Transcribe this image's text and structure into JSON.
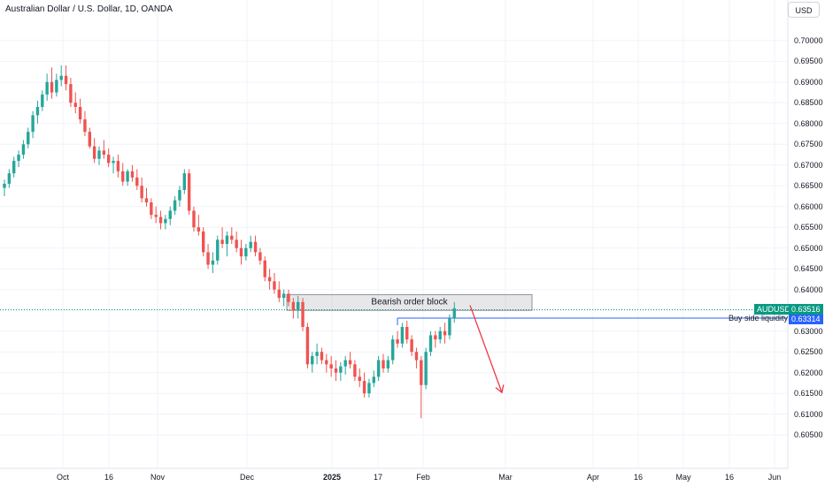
{
  "header": {
    "title": "Australian Dollar / U.S. Dollar, 1D, OANDA",
    "currency": "USD"
  },
  "colors": {
    "up": "#26a69a",
    "down": "#ef5350",
    "grid": "#f0f3fa",
    "axis": "#e0e3eb",
    "symbol_tag": "#089981",
    "liquidity": "#2962ff",
    "arrow": "#f23645"
  },
  "chart_data": {
    "type": "candlestick",
    "title": "Australian Dollar / U.S. Dollar, 1D, OANDA",
    "ylabel": "USD",
    "ylim": [
      0.6012,
      0.7055
    ],
    "y_ticks": [
      "0.70000",
      "0.69500",
      "0.69000",
      "0.68500",
      "0.68000",
      "0.67500",
      "0.67000",
      "0.66500",
      "0.66000",
      "0.65500",
      "0.65000",
      "0.64500",
      "0.64000",
      "0.63500",
      "0.63000",
      "0.62500",
      "0.62000",
      "0.61500",
      "0.61000",
      "0.60500"
    ],
    "x_ticks": [
      {
        "label": "Oct",
        "bold": false
      },
      {
        "label": "16",
        "bold": false
      },
      {
        "label": "Nov",
        "bold": false
      },
      {
        "label": "Dec",
        "bold": false
      },
      {
        "label": "2025",
        "bold": true
      },
      {
        "label": "17",
        "bold": false
      },
      {
        "label": "Feb",
        "bold": false
      },
      {
        "label": "Mar",
        "bold": false
      },
      {
        "label": "Apr",
        "bold": false
      },
      {
        "label": "16",
        "bold": false
      },
      {
        "label": "May",
        "bold": false
      },
      {
        "label": "16",
        "bold": false
      },
      {
        "label": "Jun",
        "bold": false
      }
    ],
    "grid": true,
    "candles_ohlc": [
      [
        0.6645,
        0.6665,
        0.6625,
        0.6655
      ],
      [
        0.6655,
        0.669,
        0.6645,
        0.668
      ],
      [
        0.668,
        0.672,
        0.667,
        0.671
      ],
      [
        0.671,
        0.6735,
        0.6695,
        0.6725
      ],
      [
        0.6725,
        0.676,
        0.6715,
        0.675
      ],
      [
        0.675,
        0.679,
        0.674,
        0.678
      ],
      [
        0.678,
        0.683,
        0.6765,
        0.682
      ],
      [
        0.682,
        0.6855,
        0.68,
        0.684
      ],
      [
        0.684,
        0.688,
        0.683,
        0.687
      ],
      [
        0.687,
        0.692,
        0.6855,
        0.69
      ],
      [
        0.69,
        0.6935,
        0.686,
        0.6875
      ],
      [
        0.6875,
        0.692,
        0.6865,
        0.6905
      ],
      [
        0.6905,
        0.694,
        0.689,
        0.6915
      ],
      [
        0.6915,
        0.694,
        0.688,
        0.6895
      ],
      [
        0.6895,
        0.691,
        0.684,
        0.685
      ],
      [
        0.685,
        0.6875,
        0.6825,
        0.684
      ],
      [
        0.684,
        0.686,
        0.68,
        0.681
      ],
      [
        0.681,
        0.683,
        0.677,
        0.678
      ],
      [
        0.678,
        0.679,
        0.674,
        0.6745
      ],
      [
        0.6745,
        0.6765,
        0.6705,
        0.6715
      ],
      [
        0.6715,
        0.6745,
        0.67,
        0.6735
      ],
      [
        0.6735,
        0.676,
        0.6715,
        0.6725
      ],
      [
        0.6725,
        0.674,
        0.6695,
        0.6705
      ],
      [
        0.6705,
        0.672,
        0.668,
        0.671
      ],
      [
        0.671,
        0.6725,
        0.667,
        0.6685
      ],
      [
        0.6685,
        0.6705,
        0.665,
        0.666
      ],
      [
        0.666,
        0.669,
        0.665,
        0.6685
      ],
      [
        0.6685,
        0.67,
        0.666,
        0.667
      ],
      [
        0.667,
        0.669,
        0.664,
        0.665
      ],
      [
        0.665,
        0.667,
        0.661,
        0.662
      ],
      [
        0.662,
        0.6645,
        0.66,
        0.661
      ],
      [
        0.661,
        0.662,
        0.657,
        0.658
      ],
      [
        0.658,
        0.66,
        0.656,
        0.6575
      ],
      [
        0.6575,
        0.659,
        0.6545,
        0.656
      ],
      [
        0.656,
        0.658,
        0.6545,
        0.657
      ],
      [
        0.657,
        0.66,
        0.6555,
        0.659
      ],
      [
        0.659,
        0.6625,
        0.658,
        0.6615
      ],
      [
        0.6615,
        0.665,
        0.66,
        0.664
      ],
      [
        0.664,
        0.669,
        0.663,
        0.668
      ],
      [
        0.668,
        0.669,
        0.658,
        0.659
      ],
      [
        0.659,
        0.66,
        0.654,
        0.655
      ],
      [
        0.655,
        0.658,
        0.653,
        0.654
      ],
      [
        0.654,
        0.655,
        0.648,
        0.649
      ],
      [
        0.649,
        0.651,
        0.645,
        0.646
      ],
      [
        0.646,
        0.649,
        0.644,
        0.647
      ],
      [
        0.647,
        0.653,
        0.646,
        0.652
      ],
      [
        0.652,
        0.655,
        0.65,
        0.651
      ],
      [
        0.651,
        0.654,
        0.648,
        0.653
      ],
      [
        0.653,
        0.655,
        0.651,
        0.652
      ],
      [
        0.652,
        0.654,
        0.649,
        0.65
      ],
      [
        0.65,
        0.652,
        0.646,
        0.648
      ],
      [
        0.648,
        0.651,
        0.647,
        0.65
      ],
      [
        0.65,
        0.653,
        0.649,
        0.6515
      ],
      [
        0.6515,
        0.653,
        0.648,
        0.649
      ],
      [
        0.649,
        0.65,
        0.646,
        0.647
      ],
      [
        0.647,
        0.648,
        0.642,
        0.643
      ],
      [
        0.643,
        0.645,
        0.64,
        0.642
      ],
      [
        0.642,
        0.644,
        0.639,
        0.64
      ],
      [
        0.64,
        0.642,
        0.637,
        0.638
      ],
      [
        0.638,
        0.64,
        0.636,
        0.639
      ],
      [
        0.639,
        0.64,
        0.636,
        0.637
      ],
      [
        0.637,
        0.638,
        0.633,
        0.635
      ],
      [
        0.635,
        0.6385,
        0.633,
        0.637
      ],
      [
        0.637,
        0.638,
        0.63,
        0.631
      ],
      [
        0.631,
        0.632,
        0.621,
        0.622
      ],
      [
        0.622,
        0.625,
        0.62,
        0.624
      ],
      [
        0.624,
        0.627,
        0.622,
        0.625
      ],
      [
        0.625,
        0.626,
        0.622,
        0.623
      ],
      [
        0.623,
        0.6245,
        0.62,
        0.622
      ],
      [
        0.622,
        0.624,
        0.619,
        0.621
      ],
      [
        0.621,
        0.623,
        0.618,
        0.62
      ],
      [
        0.62,
        0.6225,
        0.618,
        0.6215
      ],
      [
        0.6215,
        0.624,
        0.6195,
        0.623
      ],
      [
        0.623,
        0.625,
        0.621,
        0.622
      ],
      [
        0.622,
        0.623,
        0.618,
        0.619
      ],
      [
        0.619,
        0.621,
        0.6165,
        0.618
      ],
      [
        0.618,
        0.62,
        0.614,
        0.615
      ],
      [
        0.615,
        0.6185,
        0.614,
        0.6175
      ],
      [
        0.6175,
        0.6205,
        0.6165,
        0.619
      ],
      [
        0.619,
        0.624,
        0.618,
        0.623
      ],
      [
        0.623,
        0.6245,
        0.62,
        0.621
      ],
      [
        0.621,
        0.624,
        0.62,
        0.623
      ],
      [
        0.623,
        0.629,
        0.622,
        0.628
      ],
      [
        0.628,
        0.63,
        0.626,
        0.627
      ],
      [
        0.627,
        0.632,
        0.626,
        0.631
      ],
      [
        0.631,
        0.6325,
        0.627,
        0.628
      ],
      [
        0.628,
        0.629,
        0.624,
        0.625
      ],
      [
        0.625,
        0.626,
        0.621,
        0.623
      ],
      [
        0.623,
        0.624,
        0.609,
        0.617
      ],
      [
        0.617,
        0.626,
        0.616,
        0.625
      ],
      [
        0.625,
        0.63,
        0.624,
        0.629
      ],
      [
        0.629,
        0.63,
        0.626,
        0.628
      ],
      [
        0.628,
        0.631,
        0.627,
        0.63
      ],
      [
        0.63,
        0.632,
        0.627,
        0.629
      ],
      [
        0.629,
        0.634,
        0.628,
        0.633
      ],
      [
        0.633,
        0.637,
        0.632,
        0.6355
      ]
    ],
    "annotations": [
      {
        "type": "zone",
        "label": "Bearish order block",
        "y_top": 0.6388,
        "y_bottom": 0.635
      },
      {
        "type": "level",
        "label": "Buy side liquidity",
        "value": "0.63314",
        "y": 0.63314
      },
      {
        "type": "last_price",
        "label": "AUDUSD",
        "value": "0.63516",
        "y": 0.63516
      },
      {
        "type": "projection",
        "direction": "down",
        "from_y": 0.6362,
        "to_y": 0.6152
      }
    ]
  }
}
